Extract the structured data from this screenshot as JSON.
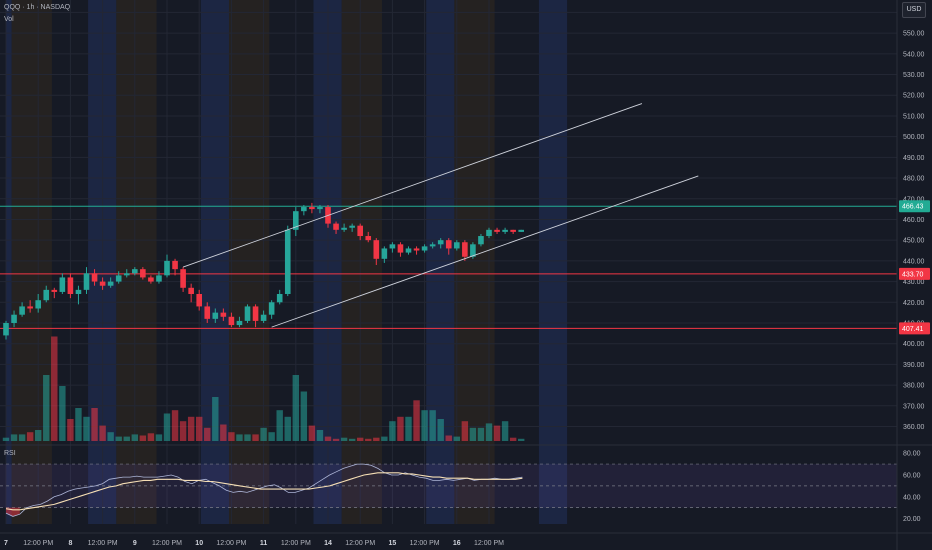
{
  "header": {
    "symbol_line": "QQQ · 1h · NASDAQ",
    "volume_label": "Vol",
    "currency": "USD",
    "rsi_label": "RSI"
  },
  "colors": {
    "background": "#161a25",
    "bull": "#26a69a",
    "bear": "#f23645",
    "band_blue": "#1f2b4d",
    "band_orange": "#2b2620",
    "hline_green": "#22ab94",
    "hline_red": "#f23645",
    "rsi_line": "#aeb6d8",
    "rsi_ma": "#f6dfb5"
  },
  "chart_data": [
    {
      "type": "candlestick",
      "symbol": "QQQ",
      "interval": "1h",
      "exchange": "NASDAQ",
      "ylim": [
        353,
        566
      ],
      "y_ticks": [
        360,
        370,
        380,
        390,
        400,
        410,
        420,
        430,
        440,
        450,
        460,
        470,
        480,
        490,
        500,
        510,
        520,
        530,
        540,
        550,
        560
      ],
      "x_ticks": [
        {
          "label": "7",
          "i": 0
        },
        {
          "label": "12:00 PM",
          "i": 4
        },
        {
          "label": "8",
          "i": 8
        },
        {
          "label": "12:00 PM",
          "i": 12
        },
        {
          "label": "9",
          "i": 16
        },
        {
          "label": "12:00 PM",
          "i": 20
        },
        {
          "label": "10",
          "i": 24
        },
        {
          "label": "12:00 PM",
          "i": 28
        },
        {
          "label": "11",
          "i": 32
        },
        {
          "label": "12:00 PM",
          "i": 36
        },
        {
          "label": "14",
          "i": 40
        },
        {
          "label": "12:00 PM",
          "i": 44
        },
        {
          "label": "15",
          "i": 48
        },
        {
          "label": "12:00 PM",
          "i": 52
        },
        {
          "label": "16",
          "i": 56
        },
        {
          "label": "12:00 PM",
          "i": 60
        }
      ],
      "price_labels": [
        {
          "value": "466.43",
          "y": 466.4,
          "color": "#22ab94"
        },
        {
          "value": "433.70",
          "y": 433.7,
          "color": "#f23645"
        },
        {
          "value": "407.41",
          "y": 407.4,
          "color": "#f23645"
        }
      ],
      "horizontal_lines": [
        {
          "y": 466.4,
          "color": "#22ab94"
        },
        {
          "y": 433.7,
          "color": "#f23645"
        },
        {
          "y": 407.4,
          "color": "#f23645"
        }
      ],
      "candles": [
        [
          404,
          410,
          402,
          411
        ],
        [
          410,
          414,
          408,
          416
        ],
        [
          414,
          418,
          413,
          420
        ],
        [
          418,
          417,
          415,
          421
        ],
        [
          417,
          421,
          415,
          424
        ],
        [
          421,
          426,
          420,
          428
        ],
        [
          426,
          425,
          422,
          427
        ],
        [
          425,
          432,
          424,
          434
        ],
        [
          432,
          424,
          422,
          434
        ],
        [
          424,
          426,
          419,
          428
        ],
        [
          426,
          434,
          424,
          437
        ],
        [
          434,
          430,
          428,
          436
        ],
        [
          430,
          428,
          426,
          432
        ],
        [
          428,
          430,
          427,
          432
        ],
        [
          430,
          433,
          429,
          435
        ],
        [
          433,
          434,
          432,
          436
        ],
        [
          434,
          436,
          433,
          437
        ],
        [
          436,
          432,
          431,
          437
        ],
        [
          432,
          430,
          429,
          433
        ],
        [
          430,
          433,
          429,
          435
        ],
        [
          433,
          440,
          432,
          443
        ],
        [
          440,
          436,
          433,
          441
        ],
        [
          436,
          427,
          425,
          437
        ],
        [
          427,
          424,
          420,
          429
        ],
        [
          424,
          418,
          416,
          426
        ],
        [
          418,
          412,
          410,
          420
        ],
        [
          412,
          415,
          410,
          417
        ],
        [
          415,
          413,
          411,
          417
        ],
        [
          413,
          409,
          408,
          415
        ],
        [
          409,
          411,
          408,
          413
        ],
        [
          411,
          418,
          410,
          419
        ],
        [
          418,
          411,
          408,
          419
        ],
        [
          411,
          414,
          410,
          416
        ],
        [
          414,
          420,
          412,
          421
        ],
        [
          420,
          424,
          419,
          426
        ],
        [
          424,
          455,
          423,
          457
        ],
        [
          455,
          464,
          452,
          466
        ],
        [
          464,
          466,
          462,
          467
        ],
        [
          466,
          465,
          463,
          468
        ],
        [
          465,
          466,
          463,
          467
        ],
        [
          466,
          458,
          456,
          467
        ],
        [
          458,
          455,
          453,
          459
        ],
        [
          455,
          456,
          454,
          458
        ],
        [
          456,
          457,
          454,
          458
        ],
        [
          457,
          452,
          450,
          458
        ],
        [
          452,
          450,
          449,
          454
        ],
        [
          450,
          441,
          438,
          451
        ],
        [
          441,
          446,
          439,
          447
        ],
        [
          446,
          448,
          444,
          449
        ],
        [
          448,
          444,
          442,
          449
        ],
        [
          444,
          446,
          443,
          447
        ],
        [
          446,
          445,
          443,
          447
        ],
        [
          445,
          447,
          444,
          448
        ],
        [
          447,
          448,
          446,
          449
        ],
        [
          448,
          450,
          446,
          451
        ],
        [
          450,
          446,
          443,
          451
        ],
        [
          446,
          449,
          445,
          450
        ],
        [
          449,
          442,
          440,
          450
        ],
        [
          442,
          448,
          441,
          449
        ],
        [
          448,
          452,
          447,
          453
        ],
        [
          452,
          455,
          451,
          456
        ],
        [
          455,
          454,
          453,
          456
        ],
        [
          454,
          455,
          453,
          456
        ],
        [
          455,
          454,
          453,
          455
        ],
        [
          454,
          455,
          454,
          455
        ]
      ],
      "volume": [
        0.03,
        0.06,
        0.06,
        0.08,
        0.1,
        0.6,
        0.95,
        0.5,
        0.2,
        0.3,
        0.22,
        0.3,
        0.14,
        0.08,
        0.04,
        0.04,
        0.06,
        0.05,
        0.07,
        0.06,
        0.25,
        0.28,
        0.18,
        0.22,
        0.22,
        0.12,
        0.4,
        0.15,
        0.08,
        0.06,
        0.06,
        0.06,
        0.12,
        0.08,
        0.28,
        0.22,
        0.6,
        0.45,
        0.14,
        0.1,
        0.04,
        0.02,
        0.03,
        0.02,
        0.03,
        0.02,
        0.03,
        0.04,
        0.18,
        0.22,
        0.22,
        0.37,
        0.28,
        0.28,
        0.2,
        0.05,
        0.04,
        0.18,
        0.12,
        0.12,
        0.16,
        0.14,
        0.18,
        0.03,
        0.02
      ],
      "trendlines": [
        {
          "from": [
            22,
            437
          ],
          "to": [
            79,
            516
          ],
          "color": "#cfd3dc"
        },
        {
          "from": [
            33,
            408
          ],
          "to": [
            86,
            481
          ],
          "color": "#cfd3dc"
        }
      ],
      "session_bands": [
        {
          "start": 0,
          "end": 0.7,
          "kind": "blue"
        },
        {
          "start": 0.7,
          "end": 5.7,
          "kind": "orange"
        },
        {
          "start": 10.2,
          "end": 13.7,
          "kind": "blue"
        },
        {
          "start": 13.7,
          "end": 18.7,
          "kind": "orange"
        },
        {
          "start": 24.2,
          "end": 27.7,
          "kind": "blue"
        },
        {
          "start": 27.7,
          "end": 32.7,
          "kind": "orange"
        },
        {
          "start": 38.2,
          "end": 41.7,
          "kind": "blue"
        },
        {
          "start": 41.7,
          "end": 46.7,
          "kind": "orange"
        },
        {
          "start": 52.2,
          "end": 55.7,
          "kind": "blue"
        },
        {
          "start": 55.7,
          "end": 60.7,
          "kind": "orange"
        },
        {
          "start": 66.2,
          "end": 69.7,
          "kind": "blue"
        }
      ]
    },
    {
      "type": "line",
      "name": "RSI",
      "ylim": [
        15,
        82
      ],
      "y_ticks": [
        20,
        40,
        60,
        80
      ],
      "overbought": 70,
      "oversold": 30,
      "rsi": [
        25,
        22,
        24,
        30,
        32,
        33,
        36,
        40,
        42,
        45,
        47,
        48,
        49,
        50,
        52,
        56,
        57,
        58,
        58,
        59,
        58,
        58,
        58,
        59,
        60,
        58,
        54,
        52,
        55,
        56,
        53,
        50,
        46,
        44,
        45,
        44,
        46,
        48,
        50,
        51,
        48,
        44,
        44,
        46,
        48,
        52,
        56,
        60,
        63,
        66,
        68,
        70,
        70,
        69,
        66,
        62,
        60,
        60,
        62,
        60,
        58,
        57,
        55,
        55,
        56,
        55,
        56,
        57,
        55,
        56,
        56,
        57,
        56,
        56,
        57,
        58
      ],
      "rsi_ma": [
        29,
        28,
        28,
        29,
        30,
        31,
        32,
        33,
        35,
        37,
        39,
        41,
        43,
        45,
        47,
        49,
        50,
        52,
        53,
        54,
        55,
        55,
        56,
        56,
        56,
        56,
        55,
        55,
        55,
        54,
        54,
        53,
        52,
        51,
        50,
        49,
        48,
        47,
        47,
        47,
        47,
        47,
        47,
        47,
        47,
        48,
        49,
        50,
        52,
        54,
        56,
        58,
        60,
        61,
        62,
        62,
        62,
        62,
        61,
        61,
        60,
        59,
        58,
        58,
        57,
        57,
        57,
        57,
        56,
        56,
        56,
        56,
        56,
        56,
        56,
        57
      ]
    }
  ]
}
